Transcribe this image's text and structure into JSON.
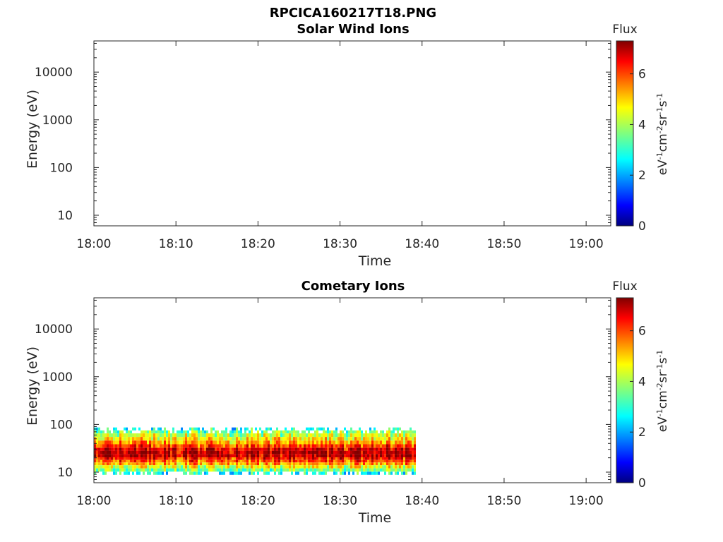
{
  "figure": {
    "title": "RPCICA160217T18.PNG"
  },
  "chart_data": [
    {
      "type": "heatmap",
      "title": "Solar Wind Ions",
      "xlabel": "Time",
      "ylabel": "Energy (eV)",
      "y_scale": "log",
      "ylim": [
        6,
        45000
      ],
      "x_tick_labels": [
        "18:00",
        "18:10",
        "18:20",
        "18:30",
        "18:40",
        "18:50",
        "19:00"
      ],
      "y_tick_labels": [
        "10",
        "100",
        "1000",
        "10000"
      ],
      "xlim": [
        "18:00",
        "19:03"
      ],
      "colorbar": {
        "label": "Flux",
        "unit": "eV-1cm-2sr-1s-1",
        "range": [
          0,
          7.3
        ],
        "ticks": [
          "0",
          "2",
          "4",
          "6"
        ]
      },
      "data": []
    },
    {
      "type": "heatmap",
      "title": "Cometary Ions",
      "xlabel": "Time",
      "ylabel": "Energy (eV)",
      "y_scale": "log",
      "ylim": [
        6,
        45000
      ],
      "x_tick_labels": [
        "18:00",
        "18:10",
        "18:20",
        "18:30",
        "18:40",
        "18:50",
        "19:00"
      ],
      "y_tick_labels": [
        "10",
        "100",
        "1000",
        "10000"
      ],
      "xlim": [
        "18:00",
        "19:03"
      ],
      "colorbar": {
        "label": "Flux",
        "unit": "eV-1cm-2sr-1s-1",
        "range": [
          0,
          7.3
        ],
        "ticks": [
          "0",
          "2",
          "4",
          "6"
        ]
      },
      "data_extent": {
        "time": [
          "18:00",
          "18:39"
        ],
        "energy_eV": [
          9,
          80
        ]
      },
      "energy_profile": {
        "energy_eV": [
          80,
          70,
          60,
          50,
          42,
          35,
          30,
          26,
          22,
          19,
          17,
          15,
          13,
          11,
          9.5
        ],
        "typical_flux": [
          2.8,
          3.6,
          4.1,
          4.6,
          5.2,
          5.9,
          6.6,
          6.9,
          6.8,
          6.2,
          5.8,
          5.2,
          4.4,
          3.6,
          2.8
        ]
      }
    }
  ]
}
